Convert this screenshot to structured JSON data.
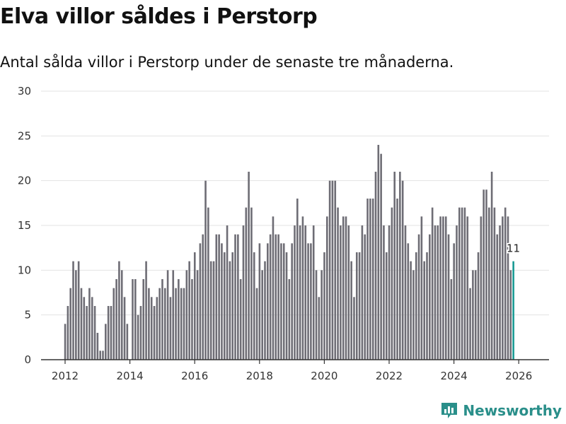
{
  "header": {
    "title": "Elva villor såldes i Perstorp",
    "subtitle": "Antal sålda villor i Perstorp under de senaste tre månaderna."
  },
  "brand": {
    "name": "Newsworthy"
  },
  "colors": {
    "bar": "#6e6d75",
    "highlight": "#1a9b94",
    "grid": "#e3e3e3",
    "axis": "#333333"
  },
  "chart_data": {
    "type": "bar",
    "title": "Elva villor såldes i Perstorp",
    "subtitle": "Antal sålda villor i Perstorp under de senaste tre månaderna.",
    "xlabel": "",
    "ylabel": "",
    "ylim": [
      0,
      30
    ],
    "yticks": [
      0,
      5,
      10,
      15,
      20,
      25,
      30
    ],
    "xticks": [
      "2012",
      "2014",
      "2016",
      "2018",
      "2020",
      "2022",
      "2024",
      "2026"
    ],
    "x_start": "2012-01",
    "frequency": "monthly",
    "grid": true,
    "highlight_label": "11",
    "values": [
      4,
      6,
      8,
      11,
      10,
      11,
      8,
      7,
      6,
      8,
      7,
      6,
      3,
      1,
      1,
      4,
      6,
      6,
      8,
      9,
      11,
      10,
      7,
      4,
      0,
      9,
      9,
      5,
      6,
      9,
      11,
      8,
      7,
      6,
      7,
      8,
      9,
      8,
      10,
      7,
      10,
      8,
      9,
      8,
      8,
      10,
      11,
      9,
      12,
      10,
      13,
      14,
      20,
      17,
      11,
      11,
      14,
      14,
      13,
      12,
      15,
      11,
      12,
      14,
      14,
      9,
      15,
      17,
      21,
      17,
      12,
      8,
      13,
      10,
      11,
      13,
      14,
      16,
      14,
      14,
      13,
      13,
      12,
      9,
      13,
      15,
      18,
      15,
      16,
      15,
      13,
      13,
      15,
      10,
      7,
      10,
      12,
      16,
      20,
      20,
      20,
      17,
      15,
      16,
      16,
      15,
      11,
      7,
      12,
      12,
      15,
      14,
      18,
      18,
      18,
      21,
      24,
      23,
      15,
      12,
      15,
      17,
      21,
      18,
      21,
      20,
      15,
      13,
      11,
      10,
      12,
      14,
      16,
      11,
      12,
      14,
      17,
      15,
      15,
      16,
      16,
      16,
      14,
      9,
      13,
      15,
      17,
      17,
      17,
      16,
      8,
      10,
      10,
      12,
      16,
      19,
      19,
      17,
      21,
      17,
      14,
      15,
      16,
      17,
      16,
      10,
      11
    ]
  }
}
